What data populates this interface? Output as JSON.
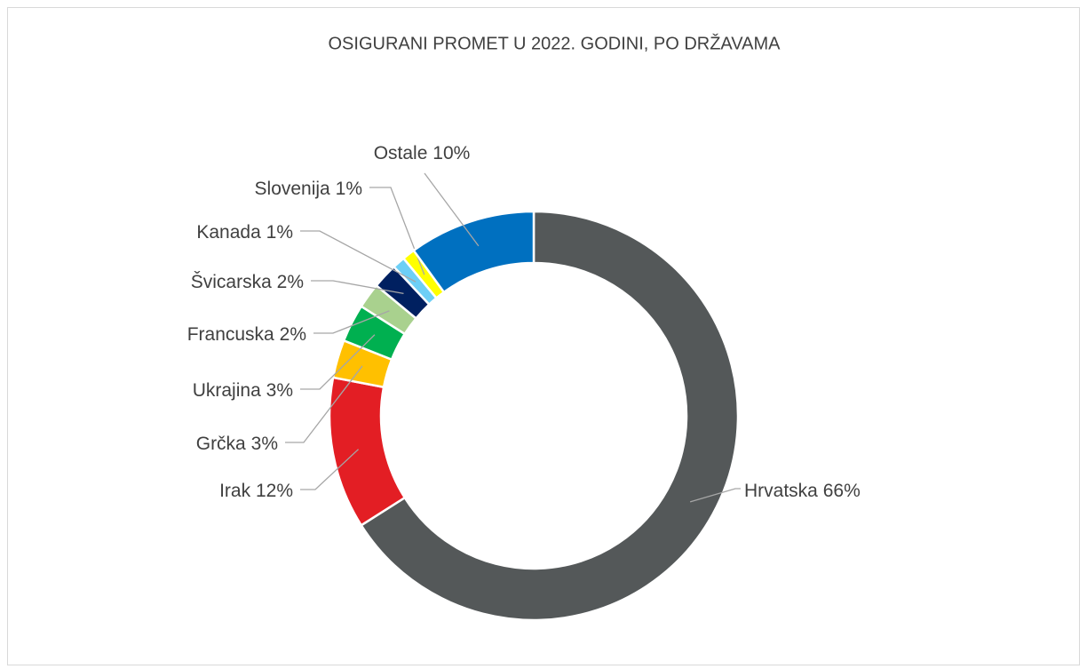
{
  "chart_data": {
    "type": "donut",
    "title": "OSIGURANI PROMET U 2022. GODINI, PO DRŽAVAMA",
    "categories": [
      "Hrvatska",
      "Irak",
      "Grčka",
      "Ukrajina",
      "Francuska",
      "Švicarska",
      "Kanada",
      "Slovenija",
      "Ostale"
    ],
    "values": [
      66,
      12,
      3,
      3,
      2,
      2,
      1,
      1,
      10
    ],
    "value_labels": [
      "66%",
      "12%",
      "3%",
      "3%",
      "2%",
      "2%",
      "1%",
      "1%",
      "10%"
    ],
    "colors": [
      "#545859",
      "#e31e24",
      "#ffc000",
      "#00b050",
      "#a9d18e",
      "#002060",
      "#6dcff6",
      "#ffff00",
      "#0070c0"
    ]
  }
}
